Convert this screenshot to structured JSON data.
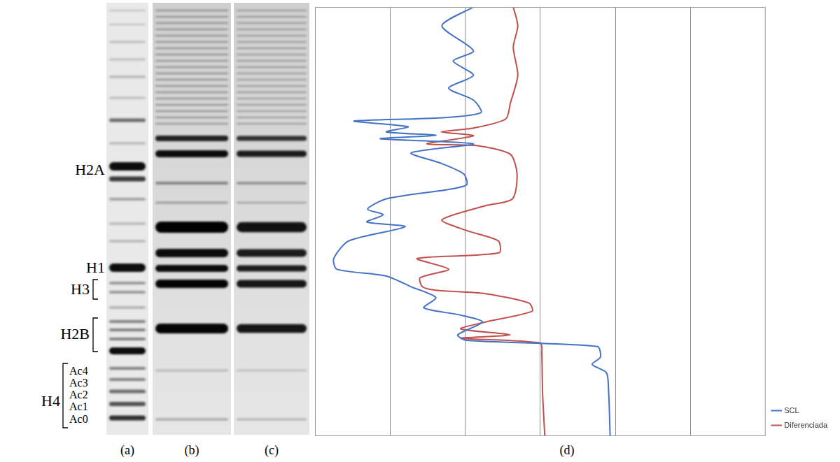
{
  "gel_labels": [
    "H2A",
    "H1",
    "H3",
    "H2B",
    "H4",
    "Ac4",
    "Ac3",
    "Ac2",
    "Ac1",
    "Ac0"
  ],
  "captions": [
    "(a)",
    "(b)",
    "(c)",
    "(d)"
  ],
  "chart_data": {
    "type": "line",
    "xlim": [
      0,
      6
    ],
    "xticks": [
      1,
      2,
      3,
      4,
      5
    ],
    "ylim": [
      0,
      100
    ],
    "grid": true,
    "tick_labels": false,
    "legend": "right",
    "series": [
      {
        "name": "SCL",
        "color": "#4472c4",
        "x": [
          2.11,
          1.69,
          2.11,
          1.84,
          2.11,
          1.78,
          2.11,
          2.21,
          1.69,
          0.52,
          1.24,
          0.95,
          1.61,
          0.87,
          2.11,
          1.28,
          1.69,
          1.98,
          2.02,
          1.78,
          0.95,
          0.7,
          0.91,
          0.69,
          1.2,
          0.45,
          0.25,
          0.29,
          0.95,
          1.28,
          1.61,
          1.45,
          1.94,
          2.23,
          1.9,
          2.02,
          3.76,
          3.8,
          3.69,
          3.88,
          3.91,
          3.93
        ],
        "y": [
          0,
          4.4,
          10.2,
          12.6,
          15.9,
          18.9,
          21.7,
          24.6,
          25.8,
          26.6,
          27.9,
          29.1,
          29.9,
          30.7,
          31.9,
          34.0,
          36.5,
          38.9,
          41.4,
          42.5,
          44.7,
          47.1,
          48.4,
          50.1,
          51.2,
          54.5,
          58.6,
          61.1,
          62.7,
          65.2,
          67.7,
          70.1,
          71.8,
          73.4,
          76.4,
          77.7,
          79.1,
          81.6,
          83.3,
          85.2,
          89.8,
          100
        ]
      },
      {
        "name": "Diferenciada",
        "color": "#c0504d",
        "x": [
          2.64,
          2.7,
          2.64,
          2.7,
          2.6,
          2.54,
          2.11,
          1.68,
          2.11,
          1.49,
          2.15,
          2.6,
          2.69,
          2.63,
          2.27,
          1.69,
          2.02,
          2.44,
          2.45,
          1.36,
          1.78,
          1.4,
          1.43,
          1.61,
          2.27,
          2.85,
          2.89,
          2.27,
          1.94,
          2.6,
          1.94,
          3.0,
          3.02,
          3.03,
          3.06
        ],
        "y": [
          0,
          4.4,
          9.4,
          15.9,
          22.5,
          26.1,
          28.2,
          29.1,
          30.0,
          31.9,
          32.3,
          34.3,
          38.9,
          44.7,
          46.3,
          49.6,
          52.1,
          54.5,
          57.3,
          58.6,
          61.1,
          63.1,
          65.2,
          66.0,
          66.8,
          69.0,
          70.9,
          73.4,
          75.0,
          76.4,
          77.2,
          78.3,
          80.8,
          89.8,
          100
        ]
      }
    ]
  }
}
